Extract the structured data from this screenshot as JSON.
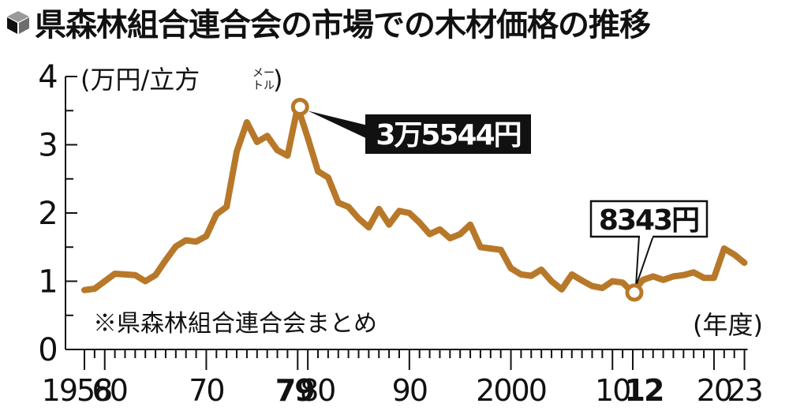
{
  "title": "県森林組合連合会の市場での木材価格の推移",
  "title_icon": "cube-icon",
  "chart_data": {
    "type": "line",
    "title": "県森林組合連合会の市場での木材価格の推移",
    "ylabel": "(万円/立方メートル)",
    "xlabel": "(年度)",
    "ylim": [
      0,
      4
    ],
    "xlim": [
      1958,
      2023
    ],
    "y_ticks": [
      "0",
      "1",
      "2",
      "3",
      "4"
    ],
    "x_tick_labels": [
      {
        "year": 1958,
        "label": "1958",
        "bold": false
      },
      {
        "year": 1960,
        "label": "60",
        "bold": false
      },
      {
        "year": 1970,
        "label": "70",
        "bold": false
      },
      {
        "year": 1979,
        "label": "79",
        "bold": true
      },
      {
        "year": 1980,
        "label": "80",
        "bold": false
      },
      {
        "year": 1990,
        "label": "90",
        "bold": false
      },
      {
        "year": 2000,
        "label": "2000",
        "bold": false
      },
      {
        "year": 2010,
        "label": "10",
        "bold": false
      },
      {
        "year": 2012,
        "label": "12",
        "bold": true
      },
      {
        "year": 2020,
        "label": "20",
        "bold": false
      },
      {
        "year": 2023,
        "label": "23",
        "bold": false
      }
    ],
    "grid": false,
    "line_color": "#b8782a",
    "series": [
      {
        "name": "木材価格",
        "x": [
          1958,
          1959,
          1960,
          1961,
          1962,
          1963,
          1964,
          1965,
          1966,
          1967,
          1968,
          1969,
          1970,
          1971,
          1972,
          1973,
          1974,
          1975,
          1976,
          1977,
          1978,
          1979,
          1980,
          1981,
          1982,
          1983,
          1984,
          1985,
          1986,
          1987,
          1988,
          1989,
          1990,
          1991,
          1992,
          1993,
          1994,
          1995,
          1996,
          1997,
          1998,
          1999,
          2000,
          2001,
          2002,
          2003,
          2004,
          2005,
          2006,
          2007,
          2008,
          2009,
          2010,
          2011,
          2012,
          2013,
          2014,
          2015,
          2016,
          2017,
          2018,
          2019,
          2020,
          2021,
          2022,
          2023
        ],
        "values": [
          0.87,
          0.89,
          1.0,
          1.11,
          1.1,
          1.09,
          1.0,
          1.09,
          1.31,
          1.51,
          1.6,
          1.58,
          1.66,
          1.98,
          2.09,
          2.9,
          3.33,
          3.04,
          3.13,
          2.92,
          2.84,
          3.5544,
          3.1,
          2.61,
          2.52,
          2.15,
          2.09,
          1.92,
          1.79,
          2.06,
          1.83,
          2.03,
          2.0,
          1.86,
          1.69,
          1.76,
          1.63,
          1.69,
          1.83,
          1.5,
          1.48,
          1.46,
          1.19,
          1.1,
          1.08,
          1.17,
          1.0,
          0.88,
          1.1,
          1.01,
          0.93,
          0.9,
          1.0,
          0.98,
          0.8343,
          1.02,
          1.07,
          1.02,
          1.07,
          1.09,
          1.13,
          1.05,
          1.05,
          1.48,
          1.39,
          1.27
        ]
      }
    ],
    "annotations": [
      {
        "year": 1979,
        "value": 3.5544,
        "text": "3万5544円",
        "style": "black-box"
      },
      {
        "year": 2012,
        "value": 0.8343,
        "text": "8343円",
        "style": "white-box"
      }
    ],
    "note": "※県森林組合連合会まとめ"
  },
  "axis": {
    "y_unit_main": "(万円/立方",
    "y_unit_small_top": "メー",
    "y_unit_small_bottom": "トル",
    "y_unit_close": ")",
    "x_unit": "(年度)"
  },
  "callouts": {
    "peak_label": "3万5544円",
    "low_label": "8343円"
  },
  "source_note": "※県森林組合連合会まとめ"
}
